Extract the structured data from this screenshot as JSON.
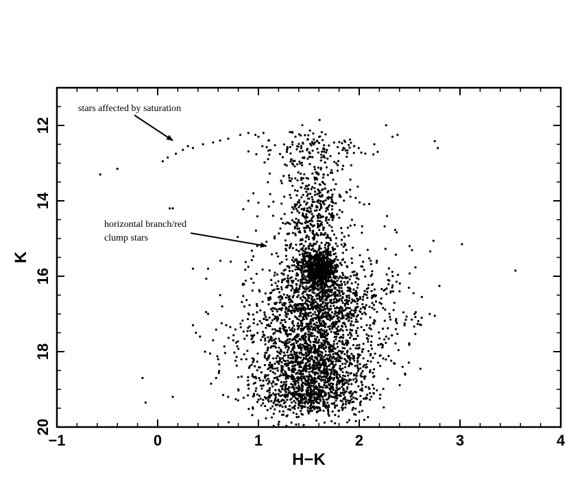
{
  "chart_data": {
    "type": "scatter",
    "xlabel": "H−K",
    "ylabel": "K",
    "xlim": [
      -1,
      4
    ],
    "ylim": [
      20,
      11
    ],
    "y_inverted": true,
    "x_ticks": [
      -1,
      0,
      1,
      2,
      3,
      4
    ],
    "x_tick_labels": [
      "−1",
      "0",
      "1",
      "2",
      "3",
      "4"
    ],
    "y_ticks": [
      12,
      14,
      16,
      18,
      20
    ],
    "y_tick_labels": [
      "12",
      "14",
      "16",
      "18",
      "20"
    ],
    "grid": false,
    "legend": "none",
    "marker_color": "#000000",
    "annotations": [
      {
        "lines": [
          "stars affected by saturation"
        ],
        "arrow_to": [
          0.15,
          12.4
        ]
      },
      {
        "lines": [
          "horizontal branch/red",
          "clump stars"
        ],
        "arrow_to": [
          1.08,
          15.2
        ]
      }
    ],
    "series": [
      {
        "points": [
          [
            -0.57,
            13.3
          ],
          [
            -0.4,
            13.15
          ],
          [
            0.05,
            12.95
          ],
          [
            0.1,
            12.85
          ],
          [
            0.18,
            12.75
          ],
          [
            0.25,
            12.65
          ],
          [
            0.35,
            12.6
          ],
          [
            0.45,
            12.5
          ],
          [
            0.55,
            12.45
          ],
          [
            0.62,
            12.4
          ],
          [
            0.7,
            12.35
          ],
          [
            0.82,
            12.25
          ],
          [
            0.9,
            12.2
          ],
          [
            0.97,
            12.25
          ],
          [
            1.0,
            12.3
          ],
          [
            1.05,
            12.2
          ],
          [
            1.1,
            12.4
          ],
          [
            0.3,
            12.55
          ],
          [
            0.15,
            14.2
          ],
          [
            0.12,
            14.2
          ],
          [
            0.95,
            13.8
          ],
          [
            0.9,
            14.0
          ],
          [
            1.0,
            14.05
          ],
          [
            -0.15,
            18.7
          ],
          [
            -0.12,
            19.35
          ],
          [
            0.15,
            19.2
          ],
          [
            0.35,
            17.3
          ],
          [
            0.38,
            17.5
          ],
          [
            0.42,
            17.6
          ],
          [
            0.48,
            16.95
          ],
          [
            0.5,
            17.0
          ],
          [
            0.47,
            18.0
          ],
          [
            0.52,
            18.05
          ],
          [
            0.55,
            17.7
          ],
          [
            0.6,
            18.2
          ],
          [
            0.58,
            18.7
          ],
          [
            0.62,
            16.5
          ],
          [
            0.64,
            16.8
          ],
          [
            0.68,
            17.3
          ],
          [
            0.65,
            19.15
          ],
          [
            0.7,
            19.2
          ],
          [
            0.35,
            15.8
          ],
          [
            0.5,
            15.8
          ],
          [
            0.53,
            18.85
          ],
          [
            0.75,
            17.7
          ],
          [
            0.8,
            19.0
          ],
          [
            0.88,
            18.2
          ],
          [
            2.5,
            15.2
          ],
          [
            2.78,
            12.6
          ],
          [
            3.02,
            15.15
          ],
          [
            3.55,
            15.85
          ],
          [
            2.55,
            17.0
          ],
          [
            2.62,
            17.1
          ],
          [
            2.7,
            17.0
          ],
          [
            2.75,
            17.05
          ],
          [
            2.45,
            17.3
          ],
          [
            2.33,
            12.3
          ],
          [
            2.38,
            12.25
          ],
          [
            2.15,
            12.5
          ],
          [
            2.4,
            16.4
          ]
        ],
        "clusters": [
          {
            "center": [
              1.6,
              15.8
            ],
            "sd": [
              0.1,
              0.25
            ],
            "count": 700
          },
          {
            "center": [
              1.55,
              18.4
            ],
            "sd": [
              0.25,
              0.7
            ],
            "count": 1300
          },
          {
            "center": [
              1.6,
              16.8
            ],
            "sd": [
              0.22,
              0.5
            ],
            "count": 700
          },
          {
            "center": [
              1.55,
              14.3
            ],
            "sd": [
              0.16,
              0.9
            ],
            "count": 500
          },
          {
            "center": [
              1.55,
              12.6
            ],
            "sd": [
              0.28,
              0.2
            ],
            "count": 100
          },
          {
            "center": [
              1.9,
              16.5
            ],
            "sd": [
              0.35,
              1.0
            ],
            "count": 250
          },
          {
            "center": [
              1.25,
              16.8
            ],
            "sd": [
              0.3,
              1.1
            ],
            "count": 200
          },
          {
            "center": [
              1.5,
              19.2
            ],
            "sd": [
              0.3,
              0.2
            ],
            "count": 250
          },
          {
            "center": [
              1.1,
              18.2
            ],
            "sd": [
              0.25,
              0.7
            ],
            "count": 120
          },
          {
            "center": [
              2.2,
              17.5
            ],
            "sd": [
              0.2,
              0.8
            ],
            "count": 60
          }
        ]
      }
    ]
  }
}
